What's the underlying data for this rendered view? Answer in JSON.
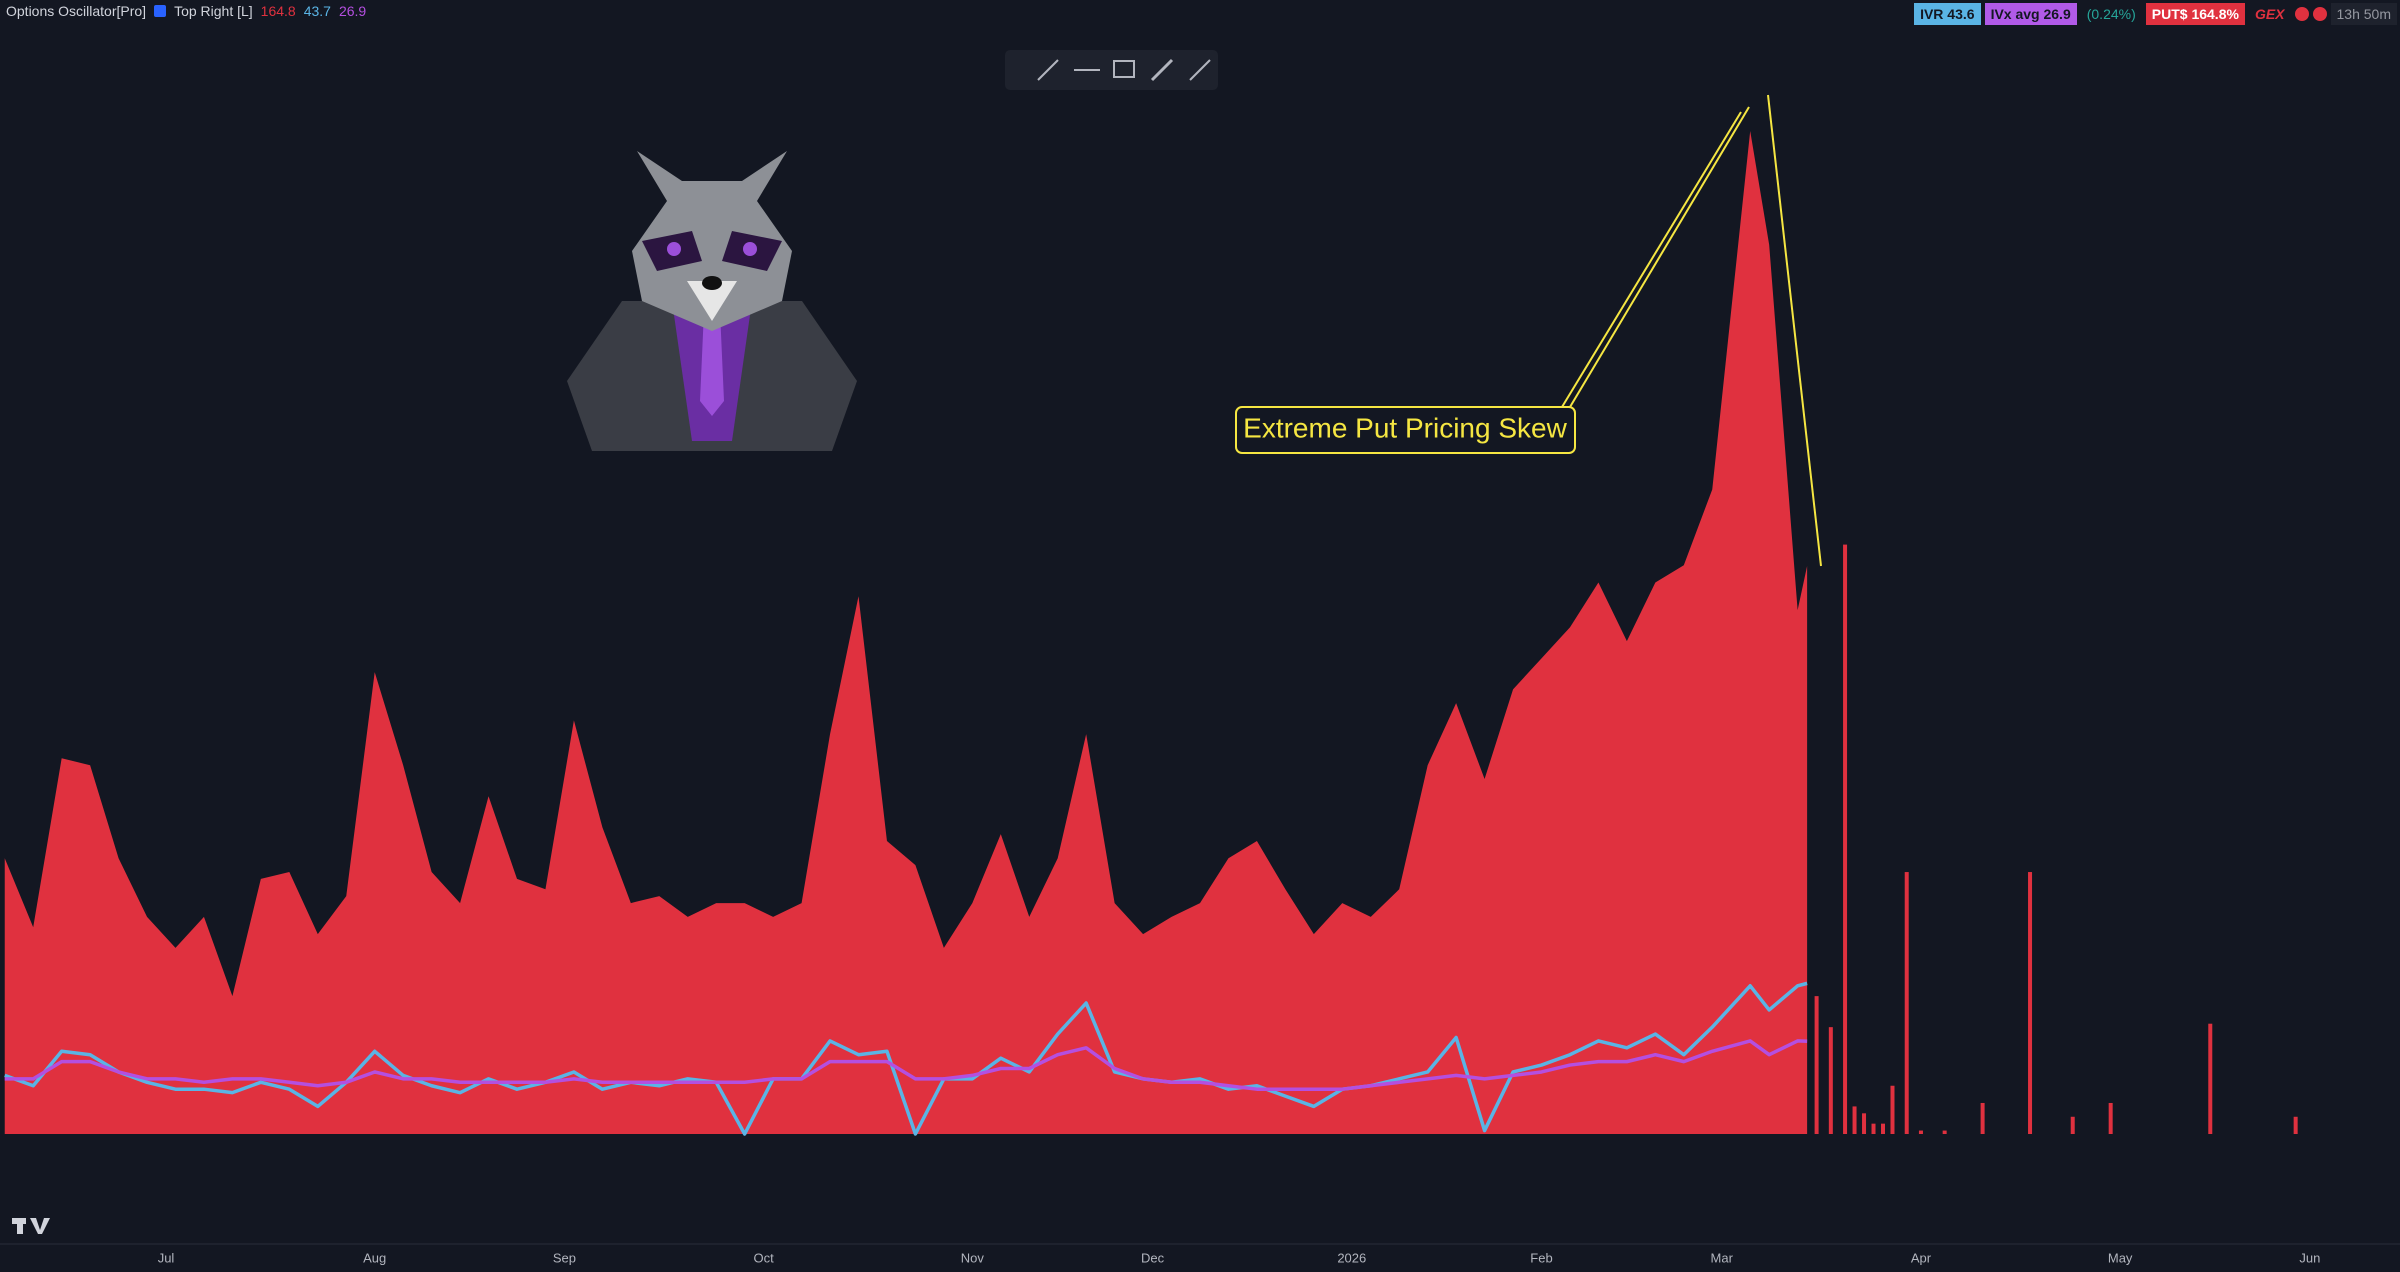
{
  "header": {
    "indicator": "Options Oscillator[Pro]",
    "position": "Top Right [L]"
  },
  "badges": [
    "IVR 43.6",
    "IVx avg 26.9",
    "(0.24%)",
    "PUT$ 164.8%",
    "GEX",
    "13h 50m"
  ],
  "chart_data": {
    "type": "area",
    "annotation": "Extreme Put Pricing Skew",
    "x": [
      -17,
      -14,
      -11,
      -8,
      -5,
      -2,
      1,
      4,
      7,
      10,
      13,
      16,
      19,
      22,
      25,
      28,
      31,
      34,
      37,
      40,
      43,
      46,
      49,
      52,
      55,
      58,
      61,
      64,
      67,
      70,
      73,
      76,
      79,
      82,
      85,
      88,
      91,
      94,
      97,
      100,
      103,
      106,
      109,
      112,
      115,
      118,
      121,
      124,
      127,
      130,
      133,
      136,
      139,
      142,
      145,
      148,
      151,
      154,
      157,
      160,
      163,
      167,
      169,
      172,
      173
    ],
    "series": [
      {
        "type": "area",
        "color": "#e0313f",
        "values": [
          80,
          60,
          109,
          107,
          80,
          63,
          54,
          63,
          40,
          74,
          76,
          58,
          69,
          134,
          107,
          76,
          67,
          98,
          74,
          71,
          120,
          89,
          67,
          69,
          63,
          67,
          67,
          63,
          67,
          116,
          156,
          85,
          78,
          54,
          67,
          87,
          63,
          80,
          116,
          67,
          58,
          63,
          67,
          80,
          85,
          71,
          58,
          67,
          63,
          71,
          107,
          125,
          103,
          129,
          138,
          147,
          160,
          143,
          160,
          165,
          187,
          291,
          258,
          152,
          164.8
        ]
      },
      {
        "type": "line",
        "color": "#5ab4e5",
        "values": [
          17,
          14,
          24,
          23,
          18,
          15,
          13,
          13,
          12,
          15,
          13,
          8,
          15,
          24,
          17,
          14,
          12,
          16,
          13,
          15,
          18,
          13,
          15,
          14,
          16,
          15,
          0,
          16,
          16,
          27,
          23,
          24,
          0,
          16,
          16,
          22,
          18,
          29,
          38,
          18,
          16,
          15,
          16,
          13,
          14,
          11,
          8,
          13,
          14,
          16,
          18,
          28,
          1,
          18,
          20,
          23,
          27,
          25,
          29,
          23,
          31,
          43,
          36,
          43,
          43.7
        ]
      },
      {
        "type": "line",
        "color": "#b44fe0",
        "values": [
          16,
          16,
          21,
          21,
          18,
          16,
          16,
          15,
          16,
          16,
          15,
          14,
          15,
          18,
          16,
          16,
          15,
          15,
          15,
          15,
          16,
          15,
          15,
          15,
          15,
          15,
          15,
          16,
          16,
          21,
          21,
          21,
          16,
          16,
          17,
          19,
          19,
          23,
          25,
          19,
          16,
          15,
          15,
          14,
          13,
          13,
          13,
          13,
          14,
          15,
          16,
          17,
          16,
          17,
          18,
          20,
          21,
          21,
          23,
          21,
          24,
          27,
          23,
          27,
          26.9
        ]
      }
    ],
    "bars": {
      "type": "bar",
      "color": "#e0313f",
      "x": [
        174,
        175.5,
        177,
        178,
        179,
        180,
        181,
        182,
        183.5,
        185,
        187.5,
        191.5,
        196.5,
        201,
        205,
        215.5,
        224.5
      ],
      "values": [
        40,
        31,
        171,
        8,
        6,
        3,
        3,
        14,
        76,
        1,
        1,
        9,
        76,
        5,
        9,
        32,
        5
      ]
    },
    "xlim": [
      -17.5,
      235.5
    ],
    "ylim": [
      0,
      329
    ],
    "xticks": [
      {
        "value": 0,
        "label": "Jul"
      },
      {
        "value": 22,
        "label": "Aug"
      },
      {
        "value": 42,
        "label": "Sep"
      },
      {
        "value": 63,
        "label": "Oct"
      },
      {
        "value": 85,
        "label": "Nov"
      },
      {
        "value": 104,
        "label": "Dec"
      },
      {
        "value": 125,
        "label": "2026"
      },
      {
        "value": 145,
        "label": "Feb"
      },
      {
        "value": 164,
        "label": "Mar"
      },
      {
        "value": 185,
        "label": "Apr"
      },
      {
        "value": 206,
        "label": "May"
      },
      {
        "value": 226,
        "label": "Jun"
      }
    ]
  }
}
